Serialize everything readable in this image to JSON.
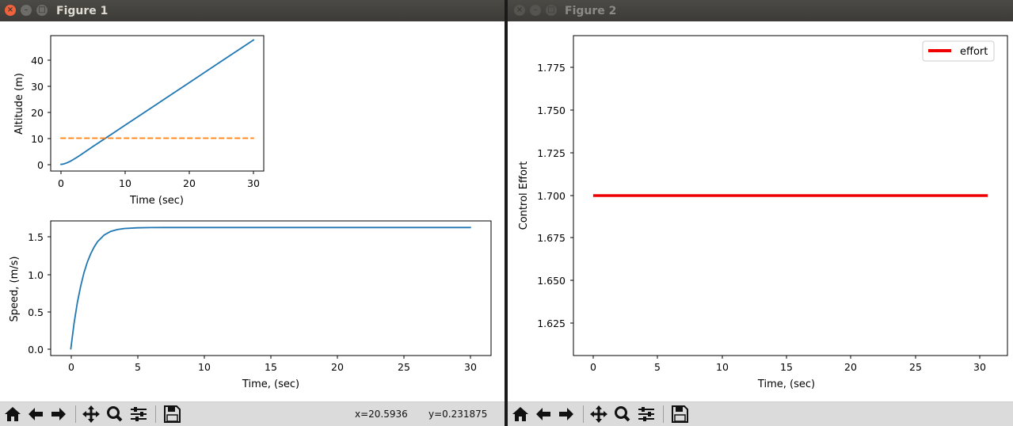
{
  "figure1": {
    "title": "Figure 1",
    "toolbar": {
      "coord_x": "x=20.5936",
      "coord_y": "y=0.231875"
    },
    "altitude_plot": {
      "xlabel": "Time (sec)",
      "ylabel": "Altitude (m)",
      "x_ticks": [
        "0",
        "10",
        "20",
        "30"
      ],
      "y_ticks": [
        "0",
        "10",
        "20",
        "30",
        "40"
      ]
    },
    "speed_plot": {
      "xlabel": "Time, (sec)",
      "ylabel": "Speed, (m/s)",
      "x_ticks": [
        "0",
        "5",
        "10",
        "15",
        "20",
        "25",
        "30"
      ],
      "y_ticks": [
        "0.0",
        "0.5",
        "1.0",
        "1.5"
      ]
    }
  },
  "figure2": {
    "title": "Figure 2",
    "effort_plot": {
      "xlabel": "Time, (sec)",
      "ylabel": "Control Effort",
      "legend": "effort",
      "x_ticks": [
        "0",
        "5",
        "10",
        "15",
        "20",
        "25",
        "30"
      ],
      "y_ticks": [
        "1.625",
        "1.650",
        "1.675",
        "1.700",
        "1.725",
        "1.750",
        "1.775"
      ]
    }
  },
  "colors": {
    "blue": "#1f77b4",
    "orange": "#ff7f0e",
    "red": "#ee0000"
  },
  "chart_data": [
    {
      "type": "line",
      "xlabel": "Time (sec)",
      "ylabel": "Altitude (m)",
      "xlim": [
        -1.5,
        31.5
      ],
      "ylim": [
        -2.5,
        49
      ],
      "series": [
        {
          "x": [
            0,
            0.5,
            1,
            1.5,
            2,
            2.5,
            3,
            4,
            5,
            6,
            8,
            10,
            15,
            20,
            25,
            30
          ],
          "values": [
            0,
            0.17,
            0.59,
            1.17,
            1.86,
            2.61,
            3.41,
            5.06,
            6.75,
            8.37,
            11.62,
            14.88,
            23.03,
            31.19,
            39.35,
            47.5
          ],
          "color": "#1f77b4",
          "dash": false
        },
        {
          "x": [
            0,
            30
          ],
          "values": [
            10,
            10
          ],
          "color": "#ff7f0e",
          "dash": true
        }
      ]
    },
    {
      "type": "line",
      "xlabel": "Time, (sec)",
      "ylabel": "Speed, (m/s)",
      "xlim": [
        -1.5,
        31.5
      ],
      "ylim": [
        -0.08,
        1.72
      ],
      "series": [
        {
          "x": [
            0,
            0.25,
            0.5,
            0.75,
            1,
            1.25,
            1.5,
            1.75,
            2,
            2.5,
            3,
            3.5,
            4,
            5,
            6,
            7,
            8,
            10,
            15,
            20,
            25,
            30
          ],
          "values": [
            0,
            0.35,
            0.63,
            0.85,
            1.03,
            1.17,
            1.28,
            1.37,
            1.44,
            1.53,
            1.58,
            1.605,
            1.618,
            1.628,
            1.631,
            1.632,
            1.632,
            1.632,
            1.632,
            1.632,
            1.632,
            1.632
          ],
          "color": "#1f77b4",
          "dash": false
        }
      ]
    },
    {
      "type": "line",
      "xlabel": "Time, (sec)",
      "ylabel": "Control Effort",
      "xlim": [
        -1.5,
        31.5
      ],
      "ylim": [
        1.605,
        1.795
      ],
      "legend": [
        "effort"
      ],
      "series": [
        {
          "name": "effort",
          "x": [
            0,
            30
          ],
          "values": [
            1.7,
            1.7
          ],
          "color": "#ee0000",
          "dash": false
        }
      ]
    }
  ]
}
